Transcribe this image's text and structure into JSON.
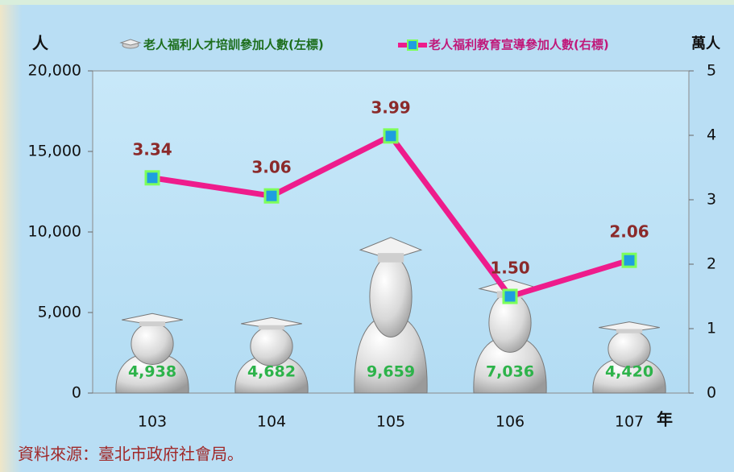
{
  "chart_data": {
    "type": "bar",
    "categories": [
      "103",
      "104",
      "105",
      "106",
      "107"
    ],
    "series": [
      {
        "name": "老人福利人才培訓參加人數(左標)",
        "color": "#2db34a",
        "values": [
          4938,
          4682,
          9659,
          7036,
          4420
        ],
        "value_labels": [
          "4,938",
          "4,682",
          "9,659",
          "7,036",
          "4,420"
        ]
      },
      {
        "name": "老人福利教育宣導參加人數(右標)",
        "color": "#ee1c8c",
        "axis": "y2",
        "type": "line",
        "values": [
          3.34,
          3.06,
          3.99,
          1.5,
          2.06
        ],
        "value_labels": [
          "3.34",
          "3.06",
          "3.99",
          "1.50",
          "2.06"
        ]
      }
    ],
    "ylabel": "人",
    "y2label": "萬人",
    "xlabel": "年",
    "ylim": [
      0,
      20000
    ],
    "yticks": [
      0,
      {
        "value": 5000,
        "label": "5,000"
      },
      {
        "value": 10000,
        "label": "10,000"
      },
      {
        "value": 15000,
        "label": "15,000"
      },
      {
        "value": 20000,
        "label": "20,000"
      }
    ],
    "y2lim": [
      0,
      5
    ],
    "y2ticks": [
      0,
      1,
      2,
      3,
      4,
      5
    ],
    "source": "資料來源：臺北市政府社會局。"
  }
}
